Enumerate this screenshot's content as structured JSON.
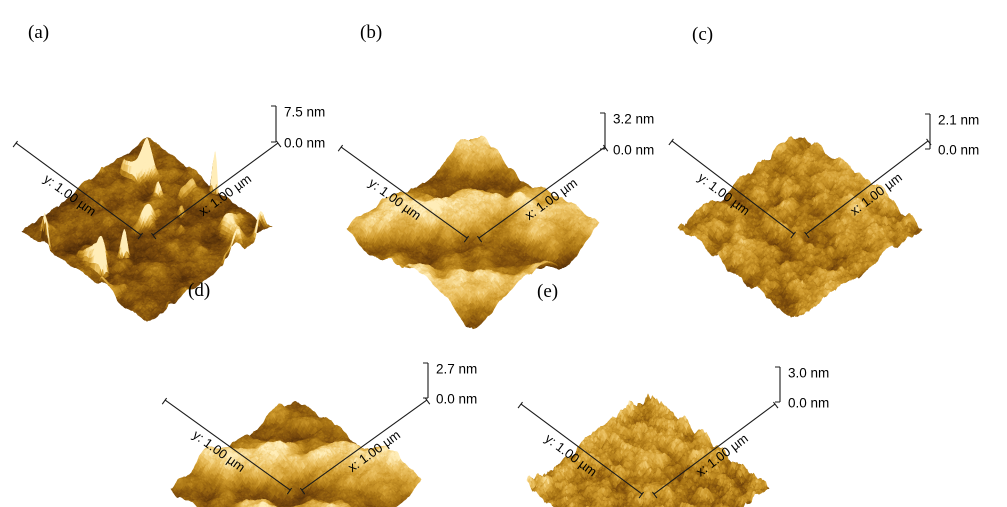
{
  "figure": {
    "type": "afm-3d-topography-grid",
    "background": "#ffffff",
    "height_palette": [
      "#120900",
      "#2e1703",
      "#55300a",
      "#7d4d0d",
      "#a87414",
      "#cf9b2e",
      "#ecc263",
      "#ffedb8"
    ],
    "panels": [
      {
        "id": "a",
        "label": "(a)",
        "y_axis_label": "y: 1.00 µm",
        "x_axis_label": "x: 1.00 µm",
        "scale_max": "7.5 nm",
        "scale_min": "0.0 nm",
        "texture": "dark-granular-with-sparse-bright-peaks"
      },
      {
        "id": "b",
        "label": "(b)",
        "y_axis_label": "y: 1.00 µm",
        "x_axis_label": "x: 1.00 µm",
        "scale_max": "3.2 nm",
        "scale_min": "0.0 nm",
        "texture": "golden-wavy-ridges"
      },
      {
        "id": "c",
        "label": "(c)",
        "y_axis_label": "y: 1.00 µm",
        "x_axis_label": "x: 1.00 µm",
        "scale_max": "2.1 nm",
        "scale_min": "0.0 nm",
        "texture": "fine-granular"
      },
      {
        "id": "d",
        "label": "(d)",
        "y_axis_label": "y: 1.00 µm",
        "x_axis_label": "x: 1.00 µm",
        "scale_max": "2.7 nm",
        "scale_min": "0.0 nm",
        "texture": "coarse-ridged-mounds"
      },
      {
        "id": "e",
        "label": "(e)",
        "y_axis_label": "y: 1.00 µm",
        "x_axis_label": "x: 1.00 µm",
        "scale_max": "3.0 nm",
        "scale_min": "0.0 nm",
        "texture": "fine-granular-spiky"
      }
    ]
  }
}
